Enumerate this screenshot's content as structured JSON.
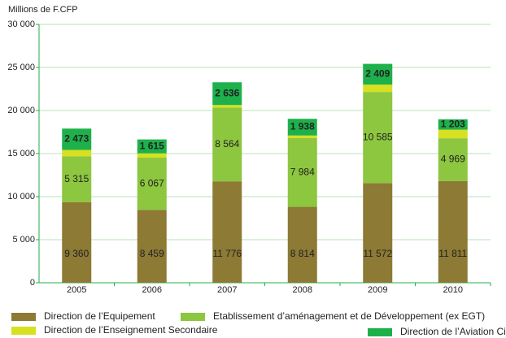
{
  "chart_data": {
    "type": "stacked-bar",
    "y_axis_label": "Millions de F.CFP",
    "categories": [
      "2005",
      "2006",
      "2007",
      "2008",
      "2009",
      "2010"
    ],
    "series": [
      {
        "name": "Direction de l’Equipement",
        "color": "#8c7a35",
        "values": [
          9360,
          8459,
          11776,
          8814,
          11572,
          11811
        ],
        "value_labels": [
          "9 360",
          "8 459",
          "11 776",
          "8 814",
          "11 572",
          "11 811"
        ]
      },
      {
        "name": "Etablissement d’aménagement et de Développement (ex EGT)",
        "color": "#8dc63f",
        "values": [
          5315,
          6067,
          8564,
          7984,
          10585,
          4969
        ],
        "value_labels": [
          "5 315",
          "6 067",
          "8 564",
          "7 984",
          "10 585",
          "4 969"
        ]
      },
      {
        "name": "Direction de l’Enseignement Secondaire",
        "color": "#d7e021",
        "values": [
          750,
          500,
          300,
          300,
          850,
          1000
        ]
      },
      {
        "name": "Direction de l’Aviation Civile",
        "color": "#1db14b",
        "values": [
          2473,
          1615,
          2636,
          1938,
          2409,
          1203
        ],
        "value_labels": [
          "2 473",
          "1 615",
          "2 636",
          "1 938",
          "2 409",
          "1 203"
        ]
      }
    ],
    "ylim": [
      0,
      30000
    ],
    "yticks": [
      0,
      {
        "value": 5000,
        "label": "5 000"
      },
      {
        "value": 10000,
        "label": "10 000"
      },
      {
        "value": 15000,
        "label": "15 000"
      },
      {
        "value": 20000,
        "label": "20 000"
      },
      {
        "value": 25000,
        "label": "25 000"
      },
      {
        "value": 30000,
        "label": "30 000"
      }
    ],
    "grid": true
  }
}
